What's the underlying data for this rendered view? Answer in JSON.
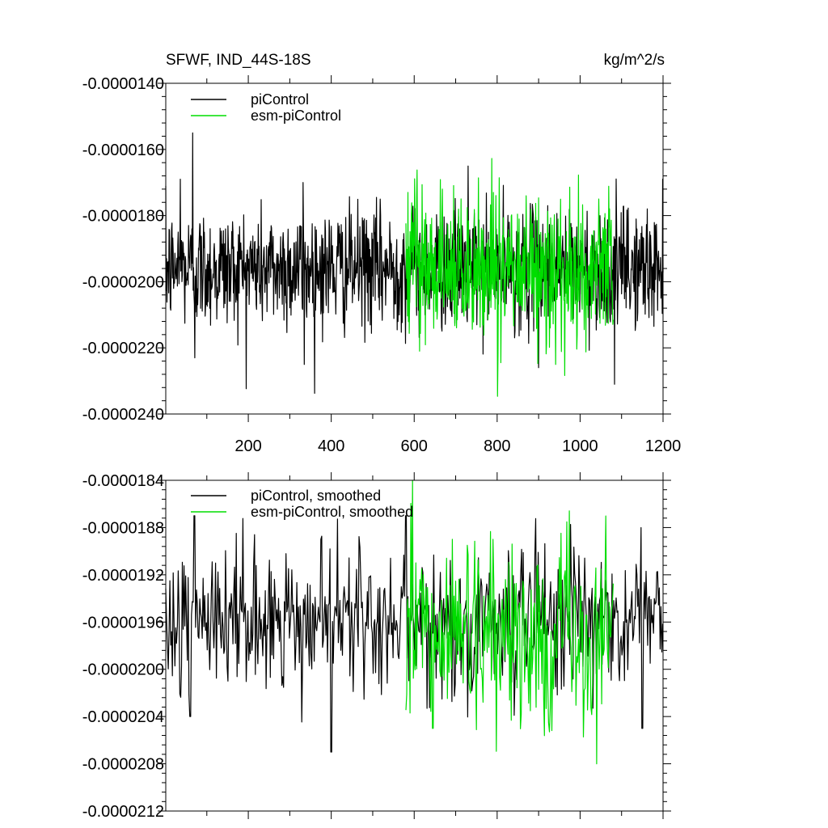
{
  "chart_data": [
    {
      "type": "line",
      "title": "SFWF, IND_44S-18S",
      "units": "kg/m^2/s",
      "xlim": [
        1,
        1200
      ],
      "ylim": [
        -2.4e-05,
        -1.4e-05
      ],
      "x_ticks": [
        200,
        400,
        600,
        800,
        1000,
        1200
      ],
      "x_tick_labels": [
        "200",
        "400",
        "600",
        "800",
        "1000",
        "1200"
      ],
      "y_ticks": [
        -1.4e-05,
        -1.6e-05,
        -1.8e-05,
        -2e-05,
        -2.2e-05,
        -2.4e-05
      ],
      "y_tick_labels": [
        "-0.0000140",
        "-0.0000160",
        "-0.0000180",
        "-0.0000200",
        "-0.0000220",
        "-0.0000240"
      ],
      "legend_position": "top-left",
      "series": [
        {
          "name": "piControl",
          "color": "#000000",
          "x_range": [
            1,
            1200
          ],
          "mean": -1.96e-05,
          "std": 9e-07,
          "peaks": [
            [
              66,
              -1.55e-05
            ],
            [
              730,
              -1.65e-05
            ],
            [
              36,
              -1.69e-05
            ],
            [
              332,
              -1.7e-05
            ],
            [
              1083,
              -2.31e-05
            ],
            [
              335,
              -2.25e-05
            ],
            [
              71,
              -2.23e-05
            ],
            [
              900,
              -2.26e-05
            ]
          ]
        },
        {
          "name": "esm-piControl",
          "color": "#00dd00",
          "x_range": [
            580,
            1080
          ],
          "mean": -1.96e-05,
          "std": 1.1e-06,
          "peaks": [
            [
              668,
              -1.72e-05
            ],
            [
              613,
              -2.21e-05
            ],
            [
              941,
              -2.25e-05
            ],
            [
              870,
              -1.74e-05
            ],
            [
              1045,
              -1.75e-05
            ]
          ]
        }
      ]
    },
    {
      "type": "line",
      "xlim": [
        1,
        1200
      ],
      "ylim": [
        -2.12e-05,
        -1.84e-05
      ],
      "y_ticks": [
        -1.84e-05,
        -1.88e-05,
        -1.92e-05,
        -1.96e-05,
        -2e-05,
        -2.04e-05,
        -2.08e-05,
        -2.12e-05
      ],
      "y_tick_labels": [
        "-0.0000184",
        "-0.0000188",
        "-0.0000192",
        "-0.0000196",
        "-0.0000200",
        "-0.0000204",
        "-0.0000208",
        "-0.0000212"
      ],
      "legend_position": "top-left",
      "series": [
        {
          "name": "piControl, smoothed",
          "color": "#000000",
          "x_range": [
            1,
            1200
          ],
          "mean": -1.96e-05,
          "std": 3e-07,
          "peaks": [
            [
              70,
              -1.87e-05
            ],
            [
              580,
              -1.87e-05
            ],
            [
              400,
              -2.07e-05
            ],
            [
              60,
              -2.04e-05
            ],
            [
              1150,
              -2.05e-05
            ]
          ]
        },
        {
          "name": "esm-piControl, smoothed",
          "color": "#00dd00",
          "x_range": [
            580,
            1080
          ],
          "mean": -1.97e-05,
          "std": 4e-07,
          "peaks": [
            [
              790,
              -1.89e-05
            ],
            [
              1040,
              -2.08e-05
            ],
            [
              645,
              -2.05e-05
            ]
          ]
        }
      ]
    }
  ]
}
